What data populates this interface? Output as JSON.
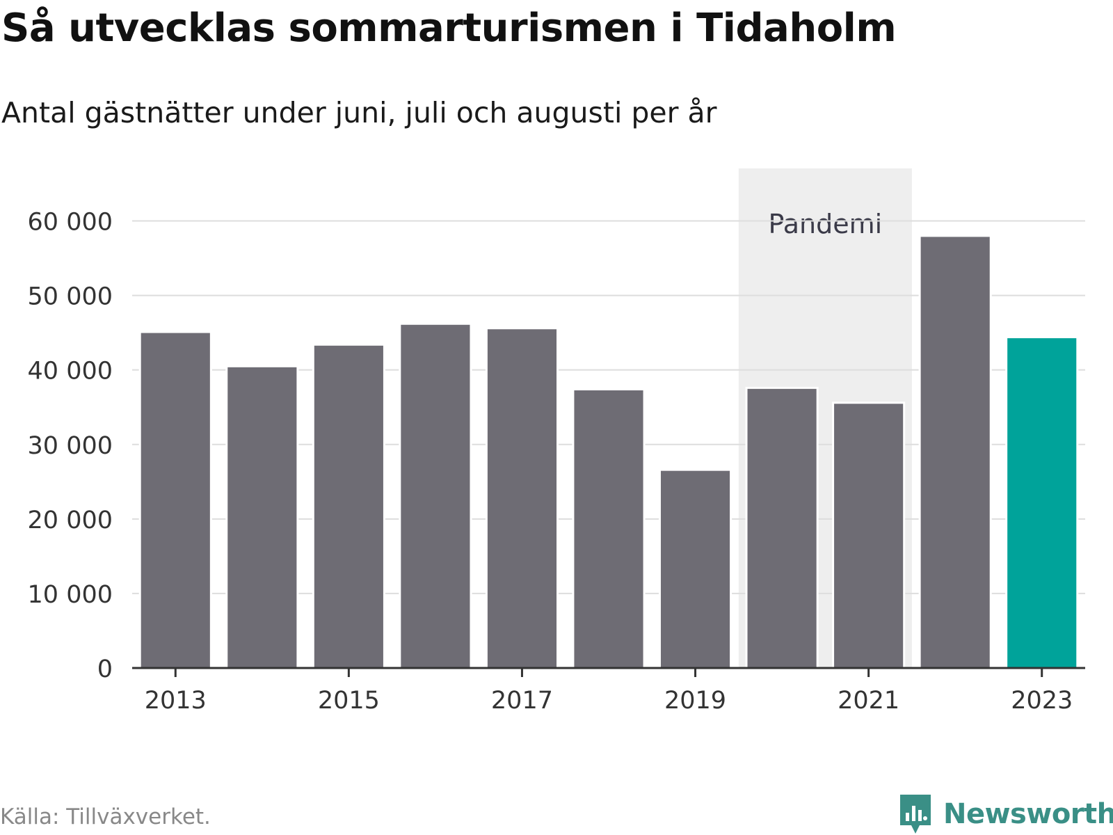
{
  "header": {
    "title": "Så utvecklas sommarturismen i Tidaholm",
    "subtitle": "Antal gästnätter under juni, juli och augusti per år"
  },
  "footer": {
    "source": "Källa: Tillväxverket.",
    "brand_name": "Newsworthy",
    "brand_icon": "newsworthy-logo-icon"
  },
  "colors": {
    "bar": "#6e6c74",
    "highlight": "#00a39a",
    "band": "#eeeeee",
    "grid": "#dddddd",
    "axis": "#333333",
    "brand": "#3a8f86"
  },
  "chart_data": {
    "type": "bar",
    "title": "Så utvecklas sommarturismen i Tidaholm",
    "subtitle": "Antal gästnätter under juni, juli och augusti per år",
    "xlabel": "",
    "ylabel": "",
    "categories": [
      "2013",
      "2014",
      "2015",
      "2016",
      "2017",
      "2018",
      "2019",
      "2020",
      "2021",
      "2022",
      "2023"
    ],
    "values": [
      45100,
      40500,
      43400,
      46200,
      45600,
      37400,
      26600,
      37600,
      35600,
      58000,
      44400
    ],
    "highlight_category": "2023",
    "ylim": [
      0,
      60000
    ],
    "yticks": [
      0,
      10000,
      20000,
      30000,
      40000,
      50000,
      60000
    ],
    "ytick_labels": [
      "0",
      "10 000",
      "20 000",
      "30 000",
      "40 000",
      "50 000",
      "60 000"
    ],
    "xtick_labels": [
      "2013",
      "2015",
      "2017",
      "2019",
      "2021",
      "2023"
    ],
    "grid": true,
    "legend": "none",
    "annotations": [
      {
        "type": "band",
        "label": "Pandemi",
        "from": "2020",
        "to": "2021"
      }
    ]
  }
}
